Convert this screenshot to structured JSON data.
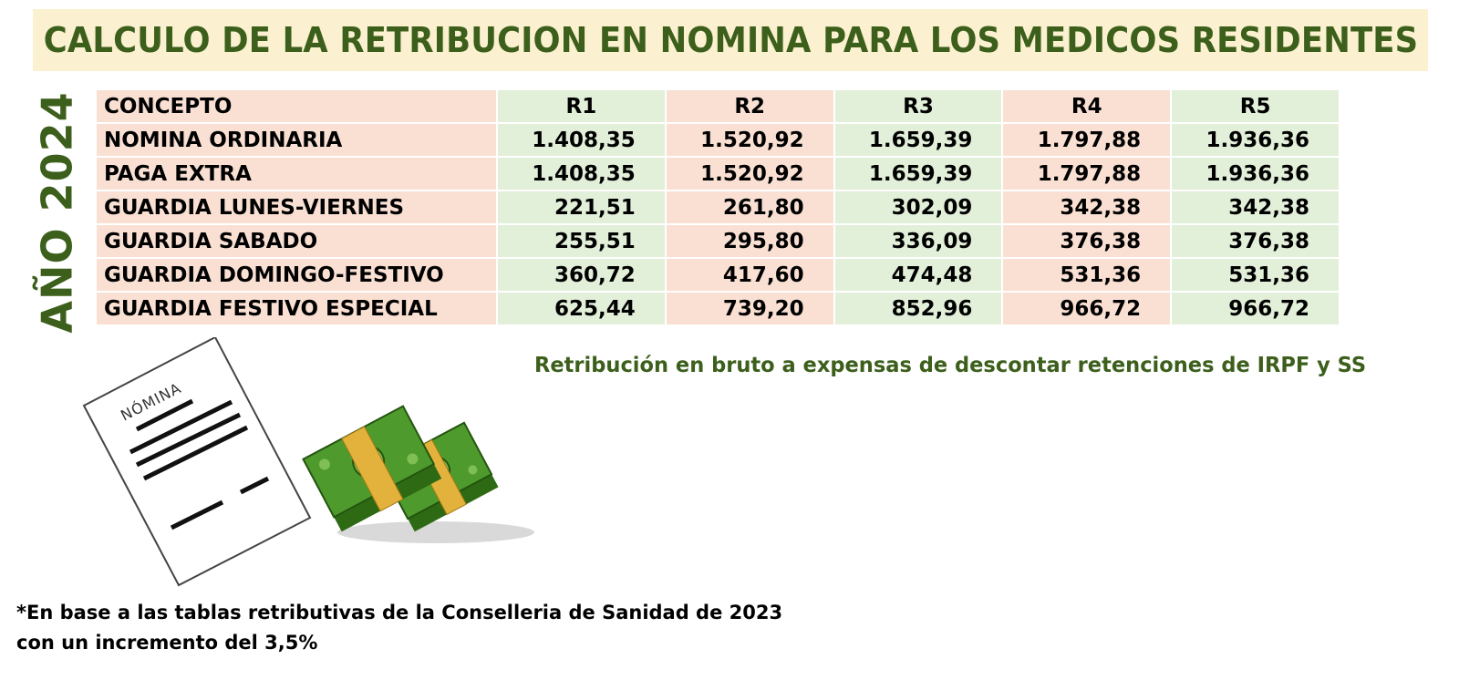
{
  "title": "CALCULO DE LA RETRIBUCION EN NOMINA PARA LOS MEDICOS RESIDENTES",
  "year_label": "AÑO 2024",
  "table": {
    "columns": [
      "CONCEPTO",
      "R1",
      "R2",
      "R3",
      "R4",
      "R5"
    ],
    "rows": [
      {
        "concept": "NOMINA ORDINARIA",
        "values": [
          "1.408,35",
          "1.520,92",
          "1.659,39",
          "1.797,88",
          "1.936,36"
        ]
      },
      {
        "concept": "PAGA EXTRA",
        "values": [
          "1.408,35",
          "1.520,92",
          "1.659,39",
          "1.797,88",
          "1.936,36"
        ]
      },
      {
        "concept": "GUARDIA LUNES-VIERNES",
        "values": [
          "221,51",
          "261,80",
          "302,09",
          "342,38",
          "342,38"
        ]
      },
      {
        "concept": "GUARDIA SABADO",
        "values": [
          "255,51",
          "295,80",
          "336,09",
          "376,38",
          "376,38"
        ]
      },
      {
        "concept": "GUARDIA DOMINGO-FESTIVO",
        "values": [
          "360,72",
          "417,60",
          "474,48",
          "531,36",
          "531,36"
        ]
      },
      {
        "concept": "GUARDIA FESTIVO ESPECIAL",
        "values": [
          "625,44",
          "739,20",
          "852,96",
          "966,72",
          "966,72"
        ]
      }
    ]
  },
  "gross_note": "Retribución en bruto a expensas de descontar retenciones de IRPF y SS",
  "illustration": {
    "document_label": "NÓMINA",
    "icons": [
      "payslip-document-icon",
      "money-stack-icon"
    ]
  },
  "footnote": {
    "line1": "*En base a las tablas retributivas de la Conselleria de Sanidad de 2023",
    "line2": "con un incremento del 3,5%"
  },
  "colors": {
    "title_green": "#3c5f1c",
    "title_background": "#fbf0cf",
    "cell_peach": "#f9e0d3",
    "cell_green": "#e2efd9",
    "money_green": "#4e9a2c",
    "money_band": "#e3b23c"
  }
}
